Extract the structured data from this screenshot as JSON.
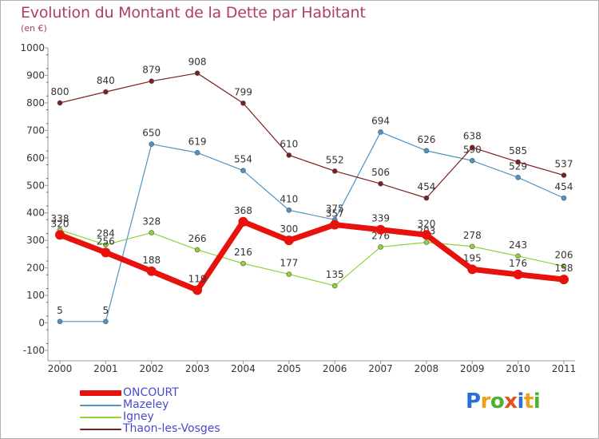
{
  "chart_data": {
    "type": "line",
    "title": "Evolution du Montant de la Dette par Habitant",
    "subtitle": "(en €)",
    "categories": [
      "2000",
      "2001",
      "2002",
      "2003",
      "2004",
      "2005",
      "2006",
      "2007",
      "2008",
      "2009",
      "2010",
      "2011"
    ],
    "ylim": [
      -100,
      1000
    ],
    "yticks": [
      -100,
      0,
      100,
      200,
      300,
      400,
      500,
      600,
      700,
      800,
      900,
      1000
    ],
    "legend_position": "bottom-left",
    "grid": false,
    "series": [
      {
        "name": "ONCOURT",
        "color": "#e8120c",
        "emphasis": true,
        "values": [
          320,
          256,
          188,
          119,
          368,
          300,
          357,
          339,
          320,
          195,
          176,
          158
        ]
      },
      {
        "name": "Mazeley",
        "color": "#4b94c8",
        "values": [
          5,
          5,
          650,
          619,
          554,
          410,
          375,
          694,
          626,
          590,
          529,
          454
        ]
      },
      {
        "name": "Igney",
        "color": "#8ed23a",
        "values": [
          338,
          284,
          328,
          266,
          216,
          177,
          135,
          276,
          293,
          278,
          243,
          206
        ]
      },
      {
        "name": "Thaon-les-Vosges",
        "color": "#7a1e1e",
        "values": [
          800,
          840,
          879,
          908,
          799,
          610,
          552,
          506,
          454,
          638,
          585,
          537
        ]
      }
    ]
  },
  "logo": {
    "text": "Proxiti",
    "letter_colors": [
      "#2b6fd1",
      "#e8a21b",
      "#4cb032",
      "#e8501b",
      "#2b6fd1",
      "#e8a21b",
      "#4cb032"
    ]
  }
}
